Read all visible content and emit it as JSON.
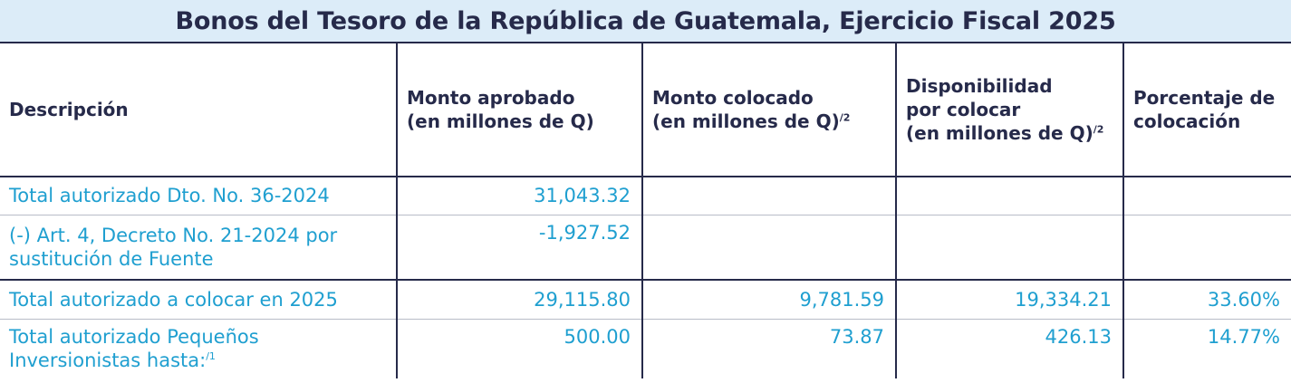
{
  "title": "Bonos del Tesoro de la República de Guatemala, Ejercicio Fiscal 2025",
  "headers": {
    "descripcion": "Descripción",
    "monto_aprobado": {
      "line1": "Monto aprobado",
      "line2": "(en millones de Q)"
    },
    "monto_colocado": {
      "line1": "Monto colocado",
      "line2": "(en millones de Q)",
      "note": "/2"
    },
    "disponibilidad": {
      "line1": "Disponibilidad",
      "line2": "por colocar",
      "line3": "(en millones de Q)",
      "note": "/2"
    },
    "porcentaje": {
      "line1": "Porcentaje de",
      "line2": "colocación"
    }
  },
  "rows": [
    {
      "descripcion": "Total autorizado Dto. No. 36-2024",
      "monto_aprobado": "31,043.32",
      "monto_colocado": "",
      "disponibilidad": "",
      "porcentaje": ""
    },
    {
      "descripcion_line1": "(-) Art. 4, Decreto No. 21-2024 por",
      "descripcion_line2": "sustitución de Fuente",
      "monto_aprobado": "-1,927.52",
      "monto_colocado": "",
      "disponibilidad": "",
      "porcentaje": ""
    },
    {
      "descripcion": "Total autorizado a colocar en 2025",
      "monto_aprobado": "29,115.80",
      "monto_colocado": "9,781.59",
      "disponibilidad": "19,334.21",
      "porcentaje": "33.60%"
    },
    {
      "descripcion_line1": "Total autorizado Pequeños",
      "descripcion_line2": "Inversionistas hasta:",
      "note": "/1",
      "monto_aprobado": "500.00",
      "monto_colocado": "73.87",
      "disponibilidad": "426.13",
      "porcentaje": "14.77%"
    }
  ]
}
